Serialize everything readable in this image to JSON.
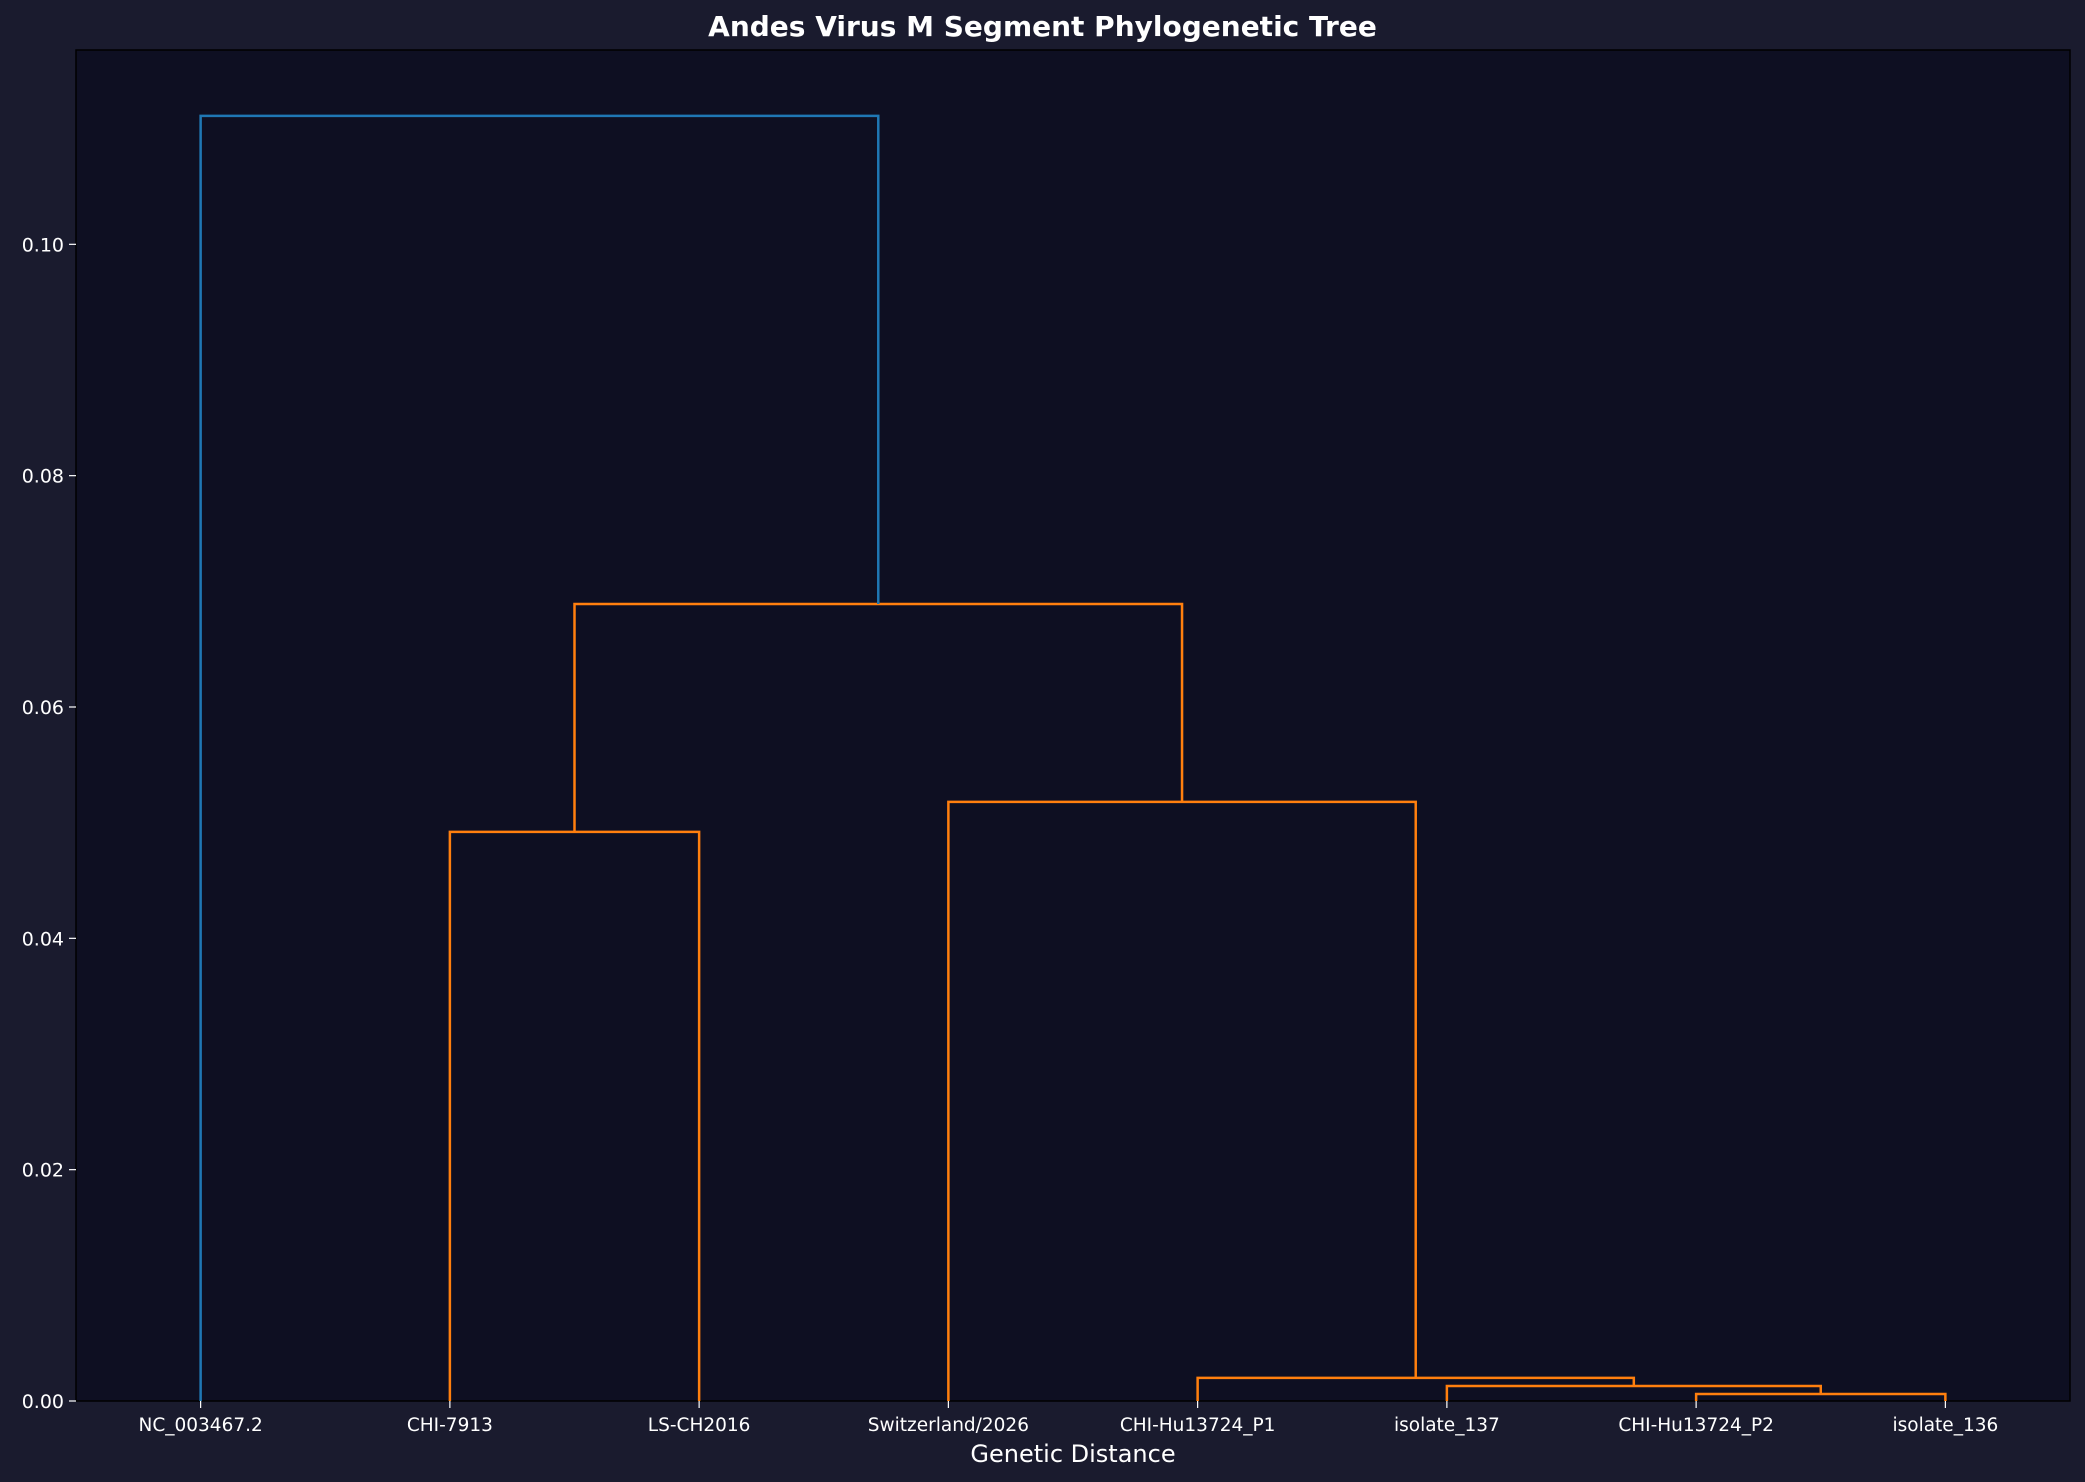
{
  "chart_data": {
    "type": "dendrogram",
    "title": "Andes Virus M Segment Phylogenetic Tree",
    "xlabel": "Genetic Distance",
    "ylabel": "",
    "ylim": [
      0,
      0.1168
    ],
    "yticks": [
      "0.00",
      "0.02",
      "0.04",
      "0.06",
      "0.08",
      "0.10"
    ],
    "grid": false,
    "colors": {
      "background": "#1a1b2e",
      "plot_background": "#0e0f22",
      "above_threshold": "#1f77b4",
      "cluster": "#ff7f0e",
      "text": "#ffffff"
    },
    "leaves": [
      "NC_003467.2",
      "CHI-7913",
      "LS-CH2016",
      "Switzerland/2026",
      "CHI-Hu13724_P1",
      "isolate_137",
      "CHI-Hu13724_P2",
      "isolate_136"
    ],
    "merges": [
      {
        "left": "CHI-Hu13724_P2",
        "right": "isolate_136",
        "height": 0.0006,
        "color": "cluster"
      },
      {
        "left": "isolate_137",
        "right": "M1",
        "height": 0.0013,
        "color": "cluster"
      },
      {
        "left": "CHI-Hu13724_P1",
        "right": "M2",
        "height": 0.002,
        "color": "cluster"
      },
      {
        "left": "CHI-7913",
        "right": "LS-CH2016",
        "height": 0.0492,
        "color": "cluster"
      },
      {
        "left": "Switzerland/2026",
        "right": "M3",
        "height": 0.0518,
        "color": "cluster"
      },
      {
        "left": "M4",
        "right": "M5",
        "height": 0.0689,
        "color": "cluster"
      },
      {
        "left": "NC_003467.2",
        "right": "M6",
        "height": 0.1111,
        "color": "above_threshold"
      }
    ]
  }
}
